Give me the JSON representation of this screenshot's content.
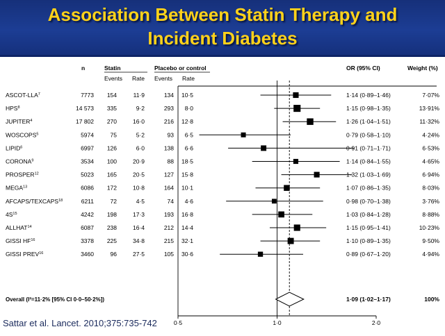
{
  "title": "Association Between Statin Therapy and\nIncident Diabetes",
  "citation": "Sattar et al. Lancet. 2010;375:735-742",
  "headers": {
    "n": "n",
    "statin": "Statin",
    "placebo": "Placebo or control",
    "events": "Events",
    "rate": "Rate",
    "or": "OR (95% CI)",
    "weight": "Weight (%)"
  },
  "chart_data": {
    "type": "forest",
    "x_scale": "log",
    "xlim": [
      0.5,
      2.0
    ],
    "x_ticks": [
      {
        "value": 0.5,
        "label": "0·5"
      },
      {
        "value": 1.0,
        "label": "1·0"
      },
      {
        "value": 2.0,
        "label": "2·0"
      }
    ],
    "reference_line": 1.0,
    "overall_line": 1.09,
    "studies": [
      {
        "name": "ASCOT-LLA",
        "ref": "7",
        "n": "7773",
        "s_events": "154",
        "s_rate": "11·9",
        "p_events": "134",
        "p_rate": "10·5",
        "or": 1.14,
        "lo": 0.89,
        "hi": 1.46,
        "or_text": "1·14 (0·89–1·46)",
        "weight": 7.07,
        "weight_text": "7·07%"
      },
      {
        "name": "HPS",
        "ref": "8",
        "n": "14 573",
        "s_events": "335",
        "s_rate": "9·2",
        "p_events": "293",
        "p_rate": "8·0",
        "or": 1.15,
        "lo": 0.98,
        "hi": 1.35,
        "or_text": "1·15 (0·98–1·35)",
        "weight": 13.91,
        "weight_text": "13·91%"
      },
      {
        "name": "JUPITER",
        "ref": "4",
        "n": "17 802",
        "s_events": "270",
        "s_rate": "16·0",
        "p_events": "216",
        "p_rate": "12·8",
        "or": 1.26,
        "lo": 1.04,
        "hi": 1.51,
        "or_text": "1·26 (1·04–1·51)",
        "weight": 11.32,
        "weight_text": "11·32%"
      },
      {
        "name": "WOSCOPS",
        "ref": "5",
        "n": "5974",
        "s_events": "75",
        "s_rate": "5·2",
        "p_events": "93",
        "p_rate": "6·5",
        "or": 0.79,
        "lo": 0.58,
        "hi": 1.1,
        "or_text": "0·79 (0·58–1·10)",
        "weight": 4.24,
        "weight_text": "4·24%"
      },
      {
        "name": "LIPID",
        "ref": "6",
        "n": "6997",
        "s_events": "126",
        "s_rate": "6·0",
        "p_events": "138",
        "p_rate": "6·6",
        "or": 0.91,
        "lo": 0.71,
        "hi": 1.71,
        "or_text": "0·91 (0·71–1·71)",
        "weight": 6.53,
        "weight_text": "6·53%"
      },
      {
        "name": "CORONA",
        "ref": "9",
        "n": "3534",
        "s_events": "100",
        "s_rate": "20·9",
        "p_events": "88",
        "p_rate": "18·5",
        "or": 1.14,
        "lo": 0.84,
        "hi": 1.55,
        "or_text": "1·14 (0·84–1·55)",
        "weight": 4.65,
        "weight_text": "4·65%"
      },
      {
        "name": "PROSPER",
        "ref": "12",
        "n": "5023",
        "s_events": "165",
        "s_rate": "20·5",
        "p_events": "127",
        "p_rate": "15·8",
        "or": 1.32,
        "lo": 1.03,
        "hi": 1.69,
        "or_text": "1·32 (1·03–1·69)",
        "weight": 6.94,
        "weight_text": "6·94%"
      },
      {
        "name": "MEGA",
        "ref": "13",
        "n": "6086",
        "s_events": "172",
        "s_rate": "10·8",
        "p_events": "164",
        "p_rate": "10·1",
        "or": 1.07,
        "lo": 0.86,
        "hi": 1.35,
        "or_text": "1·07 (0·86–1·35)",
        "weight": 8.03,
        "weight_text": "8·03%"
      },
      {
        "name": "AFCAPS/TEXCAPS",
        "ref": "18",
        "n": "6211",
        "s_events": "72",
        "s_rate": "4·5",
        "p_events": "74",
        "p_rate": "4·6",
        "or": 0.98,
        "lo": 0.7,
        "hi": 1.38,
        "or_text": "0·98 (0·70–1·38)",
        "weight": 3.76,
        "weight_text": "3·76%"
      },
      {
        "name": "4S",
        "ref": "15",
        "n": "4242",
        "s_events": "198",
        "s_rate": "17·3",
        "p_events": "193",
        "p_rate": "16·8",
        "or": 1.03,
        "lo": 0.84,
        "hi": 1.28,
        "or_text": "1·03 (0·84–1·28)",
        "weight": 8.88,
        "weight_text": "8·88%"
      },
      {
        "name": "ALLHAT",
        "ref": "14",
        "n": "6087",
        "s_events": "238",
        "s_rate": "16·4",
        "p_events": "212",
        "p_rate": "14·4",
        "or": 1.15,
        "lo": 0.95,
        "hi": 1.41,
        "or_text": "1·15 (0·95–1·41)",
        "weight": 10.23,
        "weight_text": "10·23%"
      },
      {
        "name": "GISSI HF",
        "ref": "16",
        "n": "3378",
        "s_events": "225",
        "s_rate": "34·8",
        "p_events": "215",
        "p_rate": "32·1",
        "or": 1.1,
        "lo": 0.89,
        "hi": 1.35,
        "or_text": "1·10 (0·89–1·35)",
        "weight": 9.5,
        "weight_text": "9·50%"
      },
      {
        "name": "GISSI PREV",
        "ref": "16",
        "n": "3460",
        "s_events": "96",
        "s_rate": "27·5",
        "p_events": "105",
        "p_rate": "30·6",
        "or": 0.89,
        "lo": 0.67,
        "hi": 1.2,
        "or_text": "0·89 (0·67–1·20)",
        "weight": 4.94,
        "weight_text": "4·94%"
      }
    ],
    "overall": {
      "label": "Overall (I²=11·2% [95% CI 0·0–50·2%])",
      "or": 1.09,
      "lo": 1.02,
      "hi": 1.17,
      "or_text": "1·09 (1·02–1·17)",
      "weight_text": "100%"
    }
  }
}
